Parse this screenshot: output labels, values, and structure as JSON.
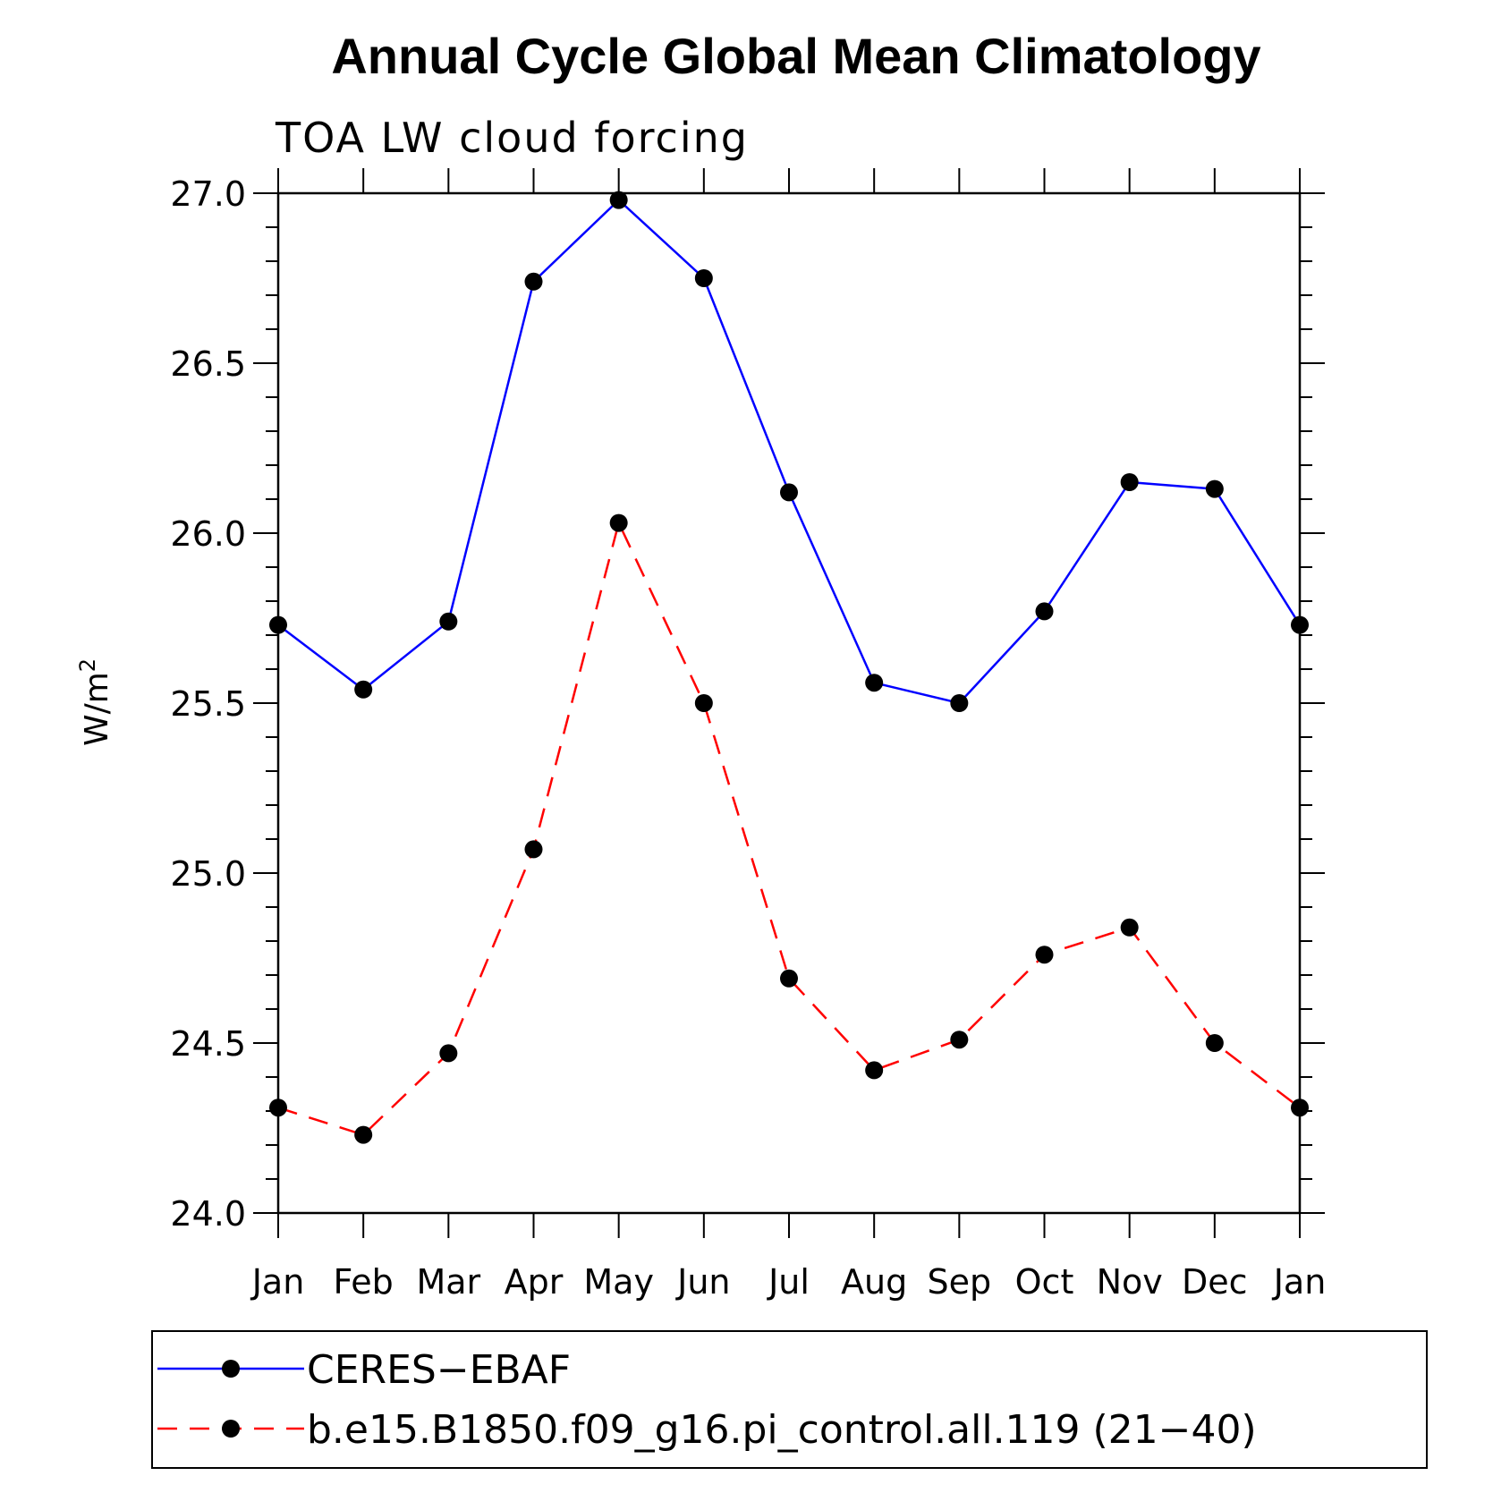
{
  "chart_data": {
    "type": "line",
    "title": "Annual Cycle Global Mean Climatology",
    "subtitle": "TOA LW cloud forcing",
    "ylabel_base": "W/m",
    "ylabel_sup": "2",
    "xlabel": "",
    "categories": [
      "Jan",
      "Feb",
      "Mar",
      "Apr",
      "May",
      "Jun",
      "Jul",
      "Aug",
      "Sep",
      "Oct",
      "Nov",
      "Dec",
      "Jan"
    ],
    "ylim": [
      24.0,
      27.0
    ],
    "yticks": [
      "24.0",
      "24.5",
      "25.0",
      "25.5",
      "26.0",
      "26.5",
      "27.0"
    ],
    "ytick_values": [
      24.0,
      24.5,
      25.0,
      25.5,
      26.0,
      26.5,
      27.0
    ],
    "grid": false,
    "legend_position": "bottom",
    "series": [
      {
        "name": "CERES−EBAF",
        "color": "#0000ff",
        "line_style": "solid",
        "marker": "filled-circle",
        "values": [
          25.73,
          25.54,
          25.74,
          26.74,
          26.98,
          26.75,
          26.12,
          25.56,
          25.5,
          25.77,
          26.15,
          26.13,
          25.73
        ]
      },
      {
        "name": "b.e15.B1850.f09_g16.pi_control.all.119 (21−40)",
        "color": "#ff0000",
        "line_style": "dashed",
        "marker": "filled-circle",
        "values": [
          24.31,
          24.23,
          24.47,
          25.07,
          26.03,
          25.5,
          24.69,
          24.42,
          24.51,
          24.76,
          24.84,
          24.5,
          24.31
        ]
      }
    ]
  }
}
